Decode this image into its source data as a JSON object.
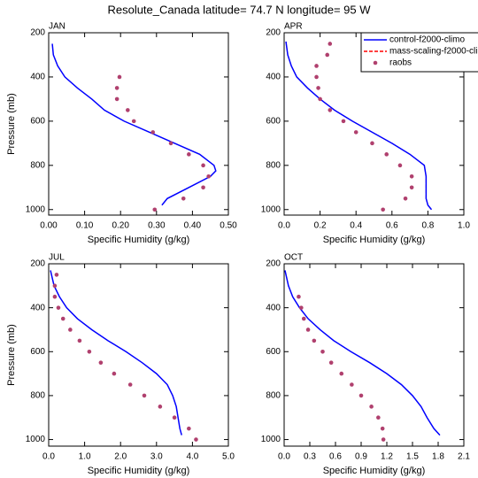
{
  "title": "Resolute_Canada  latitude= 74.7 N longitude= 95 W",
  "chart_data": [
    {
      "type": "line",
      "title": "JAN",
      "xlabel": "Specific Humidity (g/kg)",
      "ylabel": "Pressure (mb)",
      "xlim": [
        0,
        0.5
      ],
      "ylim": [
        1025,
        200
      ],
      "xticks": [
        {
          "value": 0,
          "label": "0.00"
        },
        {
          "value": 0.1,
          "label": "0.10"
        },
        {
          "value": 0.2,
          "label": "0.20"
        },
        {
          "value": 0.3,
          "label": "0.30"
        },
        {
          "value": 0.4,
          "label": "0.40"
        },
        {
          "value": 0.5,
          "label": "0.50"
        }
      ],
      "yticks": [
        200,
        400,
        600,
        800,
        1000
      ],
      "series": [
        {
          "type": "line",
          "color": "#0000ff",
          "x": [
            0.01,
            0.013,
            0.025,
            0.045,
            0.08,
            0.12,
            0.155,
            0.21,
            0.28,
            0.35,
            0.42,
            0.46,
            0.465,
            0.45,
            0.39,
            0.33,
            0.315
          ],
          "y": [
            250,
            300,
            350,
            400,
            450,
            500,
            550,
            600,
            650,
            700,
            750,
            800,
            825,
            850,
            900,
            950,
            980
          ]
        },
        {
          "type": "scatter",
          "color": "#b0406e",
          "x": [
            0.197,
            0.19,
            0.19,
            0.22,
            0.237,
            0.29,
            0.34,
            0.39,
            0.43,
            0.445,
            0.43,
            0.375,
            0.295
          ],
          "y": [
            400,
            450,
            500,
            550,
            600,
            650,
            700,
            750,
            800,
            850,
            900,
            950,
            1000
          ]
        }
      ]
    },
    {
      "type": "line",
      "title": "APR",
      "xlabel": "Specific Humidity (g/kg)",
      "xlim": [
        0,
        1
      ],
      "ylim": [
        1025,
        200
      ],
      "xticks": [
        {
          "value": 0,
          "label": "0.0"
        },
        {
          "value": 0.2,
          "label": "0.2"
        },
        {
          "value": 0.4,
          "label": "0.4"
        },
        {
          "value": 0.6,
          "label": "0.6"
        },
        {
          "value": 0.8,
          "label": "0.8"
        },
        {
          "value": 1,
          "label": "1.0"
        }
      ],
      "yticks": [
        200,
        400,
        600,
        800,
        1000
      ],
      "legend": "upper right",
      "series": [
        {
          "type": "dashed",
          "name": "mass-scaling-f2000-cli",
          "color": "#ff0000",
          "x": [
            0.01,
            0.02,
            0.04,
            0.07,
            0.13,
            0.2,
            0.28,
            0.38,
            0.49,
            0.6,
            0.7,
            0.78,
            0.79,
            0.79,
            0.79,
            0.8,
            0.82
          ],
          "y": [
            240,
            300,
            350,
            400,
            450,
            500,
            550,
            600,
            650,
            700,
            750,
            800,
            850,
            900,
            950,
            980,
            1000
          ]
        },
        {
          "type": "line",
          "name": "control-f2000-climo",
          "color": "#0000ff",
          "x": [
            0.01,
            0.02,
            0.04,
            0.07,
            0.13,
            0.2,
            0.28,
            0.38,
            0.49,
            0.6,
            0.7,
            0.78,
            0.79,
            0.79,
            0.79,
            0.8,
            0.82
          ],
          "y": [
            240,
            300,
            350,
            400,
            450,
            500,
            550,
            600,
            650,
            700,
            750,
            800,
            850,
            900,
            950,
            980,
            1000
          ]
        },
        {
          "type": "scatter",
          "name": "raobs",
          "color": "#b0406e",
          "x": [
            0.255,
            0.24,
            0.18,
            0.18,
            0.19,
            0.2,
            0.255,
            0.33,
            0.4,
            0.49,
            0.57,
            0.645,
            0.71,
            0.71,
            0.675,
            0.55
          ],
          "y": [
            250,
            300,
            350,
            400,
            450,
            500,
            550,
            600,
            650,
            700,
            750,
            800,
            850,
            900,
            950,
            1000
          ]
        }
      ]
    },
    {
      "type": "line",
      "title": "JUL",
      "xlabel": "Specific Humidity (g/kg)",
      "ylabel": "Pressure (mb)",
      "xlim": [
        0,
        5
      ],
      "ylim": [
        1030,
        200
      ],
      "xticks": [
        {
          "value": 0,
          "label": "0.0"
        },
        {
          "value": 1,
          "label": "1.0"
        },
        {
          "value": 2,
          "label": "2.0"
        },
        {
          "value": 3,
          "label": "3.0"
        },
        {
          "value": 4,
          "label": "4.0"
        },
        {
          "value": 5,
          "label": "5.0"
        }
      ],
      "yticks": [
        200,
        400,
        600,
        800,
        1000
      ],
      "series": [
        {
          "type": "line",
          "color": "#0000ff",
          "x": [
            0.05,
            0.15,
            0.3,
            0.5,
            0.8,
            1.2,
            1.65,
            2.15,
            2.6,
            3.0,
            3.3,
            3.45,
            3.55,
            3.6,
            3.65,
            3.7
          ],
          "y": [
            230,
            300,
            350,
            400,
            450,
            500,
            550,
            600,
            650,
            700,
            750,
            800,
            850,
            900,
            950,
            980
          ]
        },
        {
          "type": "scatter",
          "color": "#b0406e",
          "x": [
            0.22,
            0.17,
            0.17,
            0.27,
            0.4,
            0.6,
            0.86,
            1.13,
            1.45,
            1.82,
            2.27,
            2.66,
            3.1,
            3.5,
            3.9,
            4.1
          ],
          "y": [
            250,
            300,
            350,
            400,
            450,
            500,
            550,
            600,
            650,
            700,
            750,
            800,
            850,
            900,
            950,
            1000
          ]
        }
      ]
    },
    {
      "type": "line",
      "title": "OCT",
      "xlabel": "Specific Humidity (g/kg)",
      "xlim": [
        0,
        2.1
      ],
      "ylim": [
        1030,
        200
      ],
      "xticks": [
        {
          "value": 0,
          "label": "0.0"
        },
        {
          "value": 0.3,
          "label": "0.3"
        },
        {
          "value": 0.6,
          "label": "0.6"
        },
        {
          "value": 0.9,
          "label": "0.9"
        },
        {
          "value": 1.2,
          "label": "1.2"
        },
        {
          "value": 1.5,
          "label": "1.5"
        },
        {
          "value": 1.8,
          "label": "1.8"
        },
        {
          "value": 2.1,
          "label": "2.1"
        }
      ],
      "yticks": [
        200,
        400,
        600,
        800,
        1000
      ],
      "series": [
        {
          "type": "line",
          "color": "#0000ff",
          "x": [
            0.01,
            0.05,
            0.1,
            0.18,
            0.28,
            0.42,
            0.58,
            0.78,
            1.0,
            1.2,
            1.37,
            1.5,
            1.6,
            1.67,
            1.75,
            1.82
          ],
          "y": [
            230,
            300,
            350,
            400,
            450,
            500,
            550,
            600,
            650,
            700,
            750,
            800,
            850,
            900,
            950,
            980
          ]
        },
        {
          "type": "scatter",
          "color": "#b0406e",
          "x": [
            0.17,
            0.2,
            0.23,
            0.28,
            0.35,
            0.45,
            0.55,
            0.67,
            0.79,
            0.9,
            1.02,
            1.1,
            1.15,
            1.16
          ],
          "y": [
            350,
            400,
            450,
            500,
            550,
            600,
            650,
            700,
            750,
            800,
            850,
            900,
            950,
            1000
          ]
        }
      ]
    }
  ]
}
